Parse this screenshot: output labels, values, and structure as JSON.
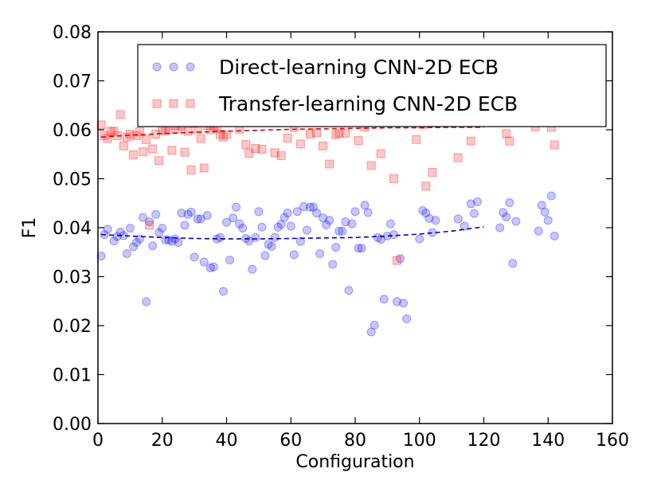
{
  "chart_data": {
    "type": "scatter",
    "xlabel": "Configuration",
    "ylabel": "F1",
    "xlim": [
      0,
      160
    ],
    "ylim": [
      0,
      0.08
    ],
    "xticks": [
      "0",
      "20",
      "40",
      "60",
      "80",
      "100",
      "120",
      "140",
      "160"
    ],
    "yticks": [
      "0.00",
      "0.01",
      "0.02",
      "0.03",
      "0.04",
      "0.05",
      "0.06",
      "0.07",
      "0.08"
    ],
    "grid": false,
    "legend_position": "top-right",
    "series": [
      {
        "name": "Direct-learning CNN-2D ECB",
        "color": "#0000ff",
        "marker": "circle",
        "points": [
          [
            1,
            0.0342
          ],
          [
            2,
            0.0386
          ],
          [
            3,
            0.0397
          ],
          [
            5,
            0.0373
          ],
          [
            6,
            0.0382
          ],
          [
            7,
            0.0391
          ],
          [
            8,
            0.0384
          ],
          [
            9,
            0.0347
          ],
          [
            10,
            0.0399
          ],
          [
            11,
            0.0361
          ],
          [
            12,
            0.037
          ],
          [
            13,
            0.0377
          ],
          [
            14,
            0.0421
          ],
          [
            15,
            0.0249
          ],
          [
            16,
            0.0412
          ],
          [
            17,
            0.0363
          ],
          [
            18,
            0.0427
          ],
          [
            19,
            0.039
          ],
          [
            20,
            0.0399
          ],
          [
            21,
            0.0375
          ],
          [
            22,
            0.0375
          ],
          [
            23,
            0.0372
          ],
          [
            24,
            0.0377
          ],
          [
            25,
            0.037
          ],
          [
            26,
            0.043
          ],
          [
            27,
            0.0405
          ],
          [
            28,
            0.0427
          ],
          [
            29,
            0.0432
          ],
          [
            30,
            0.034
          ],
          [
            31,
            0.0418
          ],
          [
            32,
            0.0418
          ],
          [
            33,
            0.033
          ],
          [
            34,
            0.0425
          ],
          [
            35,
            0.0318
          ],
          [
            36,
            0.032
          ],
          [
            37,
            0.0377
          ],
          [
            38,
            0.038
          ],
          [
            39,
            0.027
          ],
          [
            40,
            0.0411
          ],
          [
            41,
            0.0334
          ],
          [
            42,
            0.042
          ],
          [
            43,
            0.0442
          ],
          [
            44,
            0.0408
          ],
          [
            45,
            0.0399
          ],
          [
            46,
            0.0378
          ],
          [
            47,
            0.0373
          ],
          [
            48,
            0.0315
          ],
          [
            49,
            0.038
          ],
          [
            50,
            0.0433
          ],
          [
            51,
            0.0401
          ],
          [
            52,
            0.0343
          ],
          [
            53,
            0.0366
          ],
          [
            54,
            0.0362
          ],
          [
            55,
            0.038
          ],
          [
            56,
            0.0401
          ],
          [
            57,
            0.0407
          ],
          [
            58,
            0.0421
          ],
          [
            59,
            0.043
          ],
          [
            60,
            0.0403
          ],
          [
            61,
            0.0345
          ],
          [
            62,
            0.0433
          ],
          [
            63,
            0.0372
          ],
          [
            64,
            0.0443
          ],
          [
            65,
            0.0395
          ],
          [
            66,
            0.0442
          ],
          [
            67,
            0.0442
          ],
          [
            68,
            0.043
          ],
          [
            69,
            0.0347
          ],
          [
            70,
            0.042
          ],
          [
            71,
            0.0406
          ],
          [
            72,
            0.0415
          ],
          [
            73,
            0.0325
          ],
          [
            74,
            0.036
          ],
          [
            75,
            0.0393
          ],
          [
            76,
            0.0393
          ],
          [
            77,
            0.0412
          ],
          [
            78,
            0.0272
          ],
          [
            79,
            0.0408
          ],
          [
            80,
            0.0433
          ],
          [
            81,
            0.0358
          ],
          [
            82,
            0.0358
          ],
          [
            83,
            0.0446
          ],
          [
            84,
            0.0431
          ],
          [
            85,
            0.0187
          ],
          [
            86,
            0.0201
          ],
          [
            87,
            0.038
          ],
          [
            88,
            0.0376
          ],
          [
            89,
            0.0254
          ],
          [
            90,
            0.0383
          ],
          [
            91,
            0.0408
          ],
          [
            92,
            0.0386
          ],
          [
            93,
            0.0249
          ],
          [
            94,
            0.0337
          ],
          [
            95,
            0.0246
          ],
          [
            96,
            0.0214
          ],
          [
            100,
            0.0377
          ],
          [
            101,
            0.0435
          ],
          [
            102,
            0.043
          ],
          [
            103,
            0.0419
          ],
          [
            104,
            0.039
          ],
          [
            105,
            0.0415
          ],
          [
            112,
            0.0418
          ],
          [
            114,
            0.0403
          ],
          [
            116,
            0.0449
          ],
          [
            117,
            0.0429
          ],
          [
            118,
            0.0453
          ],
          [
            125,
            0.04
          ],
          [
            126,
            0.0431
          ],
          [
            127,
            0.0422
          ],
          [
            128,
            0.0451
          ],
          [
            129,
            0.0327
          ],
          [
            130,
            0.0413
          ],
          [
            137,
            0.0393
          ],
          [
            138,
            0.0446
          ],
          [
            139,
            0.0432
          ],
          [
            140,
            0.0415
          ],
          [
            141,
            0.0465
          ],
          [
            142,
            0.0383
          ]
        ],
        "trend": [
          [
            1,
            0.0386
          ],
          [
            10,
            0.0383
          ],
          [
            20,
            0.038
          ],
          [
            30,
            0.0378
          ],
          [
            40,
            0.0377
          ],
          [
            50,
            0.0377
          ],
          [
            60,
            0.0378
          ],
          [
            70,
            0.0379
          ],
          [
            80,
            0.038
          ],
          [
            90,
            0.0383
          ],
          [
            100,
            0.0387
          ],
          [
            110,
            0.0393
          ],
          [
            120,
            0.0402
          ]
        ]
      },
      {
        "name": "Transfer-learning CNN-2D ECB",
        "color": "#ff0000",
        "marker": "square",
        "points": [
          [
            1,
            0.061
          ],
          [
            2,
            0.0588
          ],
          [
            3,
            0.0582
          ],
          [
            4,
            0.0597
          ],
          [
            5,
            0.0597
          ],
          [
            6,
            0.0588
          ],
          [
            7,
            0.0631
          ],
          [
            8,
            0.0567
          ],
          [
            9,
            0.0585
          ],
          [
            10,
            0.0591
          ],
          [
            11,
            0.0549
          ],
          [
            12,
            0.0588
          ],
          [
            13,
            0.0596
          ],
          [
            14,
            0.0555
          ],
          [
            15,
            0.058
          ],
          [
            16,
            0.0405
          ],
          [
            17,
            0.0561
          ],
          [
            18,
            0.0591
          ],
          [
            19,
            0.0537
          ],
          [
            20,
            0.06
          ],
          [
            21,
            0.0598
          ],
          [
            22,
            0.06
          ],
          [
            23,
            0.0558
          ],
          [
            24,
            0.0609
          ],
          [
            25,
            0.0602
          ],
          [
            26,
            0.0608
          ],
          [
            27,
            0.0554
          ],
          [
            28,
            0.0597
          ],
          [
            29,
            0.0518
          ],
          [
            30,
            0.0613
          ],
          [
            31,
            0.0601
          ],
          [
            32,
            0.0582
          ],
          [
            33,
            0.0522
          ],
          [
            34,
            0.0609
          ],
          [
            35,
            0.06
          ],
          [
            36,
            0.0607
          ],
          [
            37,
            0.0603
          ],
          [
            38,
            0.0591
          ],
          [
            39,
            0.0585
          ],
          [
            40,
            0.059
          ],
          [
            44,
            0.0601
          ],
          [
            46,
            0.057
          ],
          [
            47,
            0.0552
          ],
          [
            49,
            0.0562
          ],
          [
            51,
            0.056
          ],
          [
            55,
            0.0553
          ],
          [
            57,
            0.0547
          ],
          [
            59,
            0.0583
          ],
          [
            61,
            0.0605
          ],
          [
            63,
            0.0571
          ],
          [
            66,
            0.0591
          ],
          [
            68,
            0.0594
          ],
          [
            70,
            0.0567
          ],
          [
            72,
            0.053
          ],
          [
            74,
            0.059
          ],
          [
            75,
            0.0593
          ],
          [
            77,
            0.0593
          ],
          [
            81,
            0.0578
          ],
          [
            83,
            0.0605
          ],
          [
            85,
            0.0527
          ],
          [
            88,
            0.0551
          ],
          [
            92,
            0.05
          ],
          [
            93,
            0.0333
          ],
          [
            99,
            0.058
          ],
          [
            101,
            0.0611
          ],
          [
            102,
            0.0485
          ],
          [
            104,
            0.0513
          ],
          [
            112,
            0.0543
          ],
          [
            116,
            0.0577
          ],
          [
            127,
            0.0592
          ],
          [
            128,
            0.0577
          ],
          [
            136,
            0.0606
          ],
          [
            141,
            0.0605
          ],
          [
            142,
            0.0569
          ]
        ],
        "trend": [
          [
            1,
            0.0585
          ],
          [
            10,
            0.0589
          ],
          [
            20,
            0.0592
          ],
          [
            30,
            0.0595
          ],
          [
            40,
            0.0597
          ],
          [
            50,
            0.0599
          ],
          [
            60,
            0.0601
          ],
          [
            70,
            0.0602
          ],
          [
            80,
            0.0603
          ],
          [
            90,
            0.0604
          ],
          [
            100,
            0.0604
          ],
          [
            110,
            0.0605
          ],
          [
            120,
            0.0605
          ]
        ]
      }
    ]
  }
}
